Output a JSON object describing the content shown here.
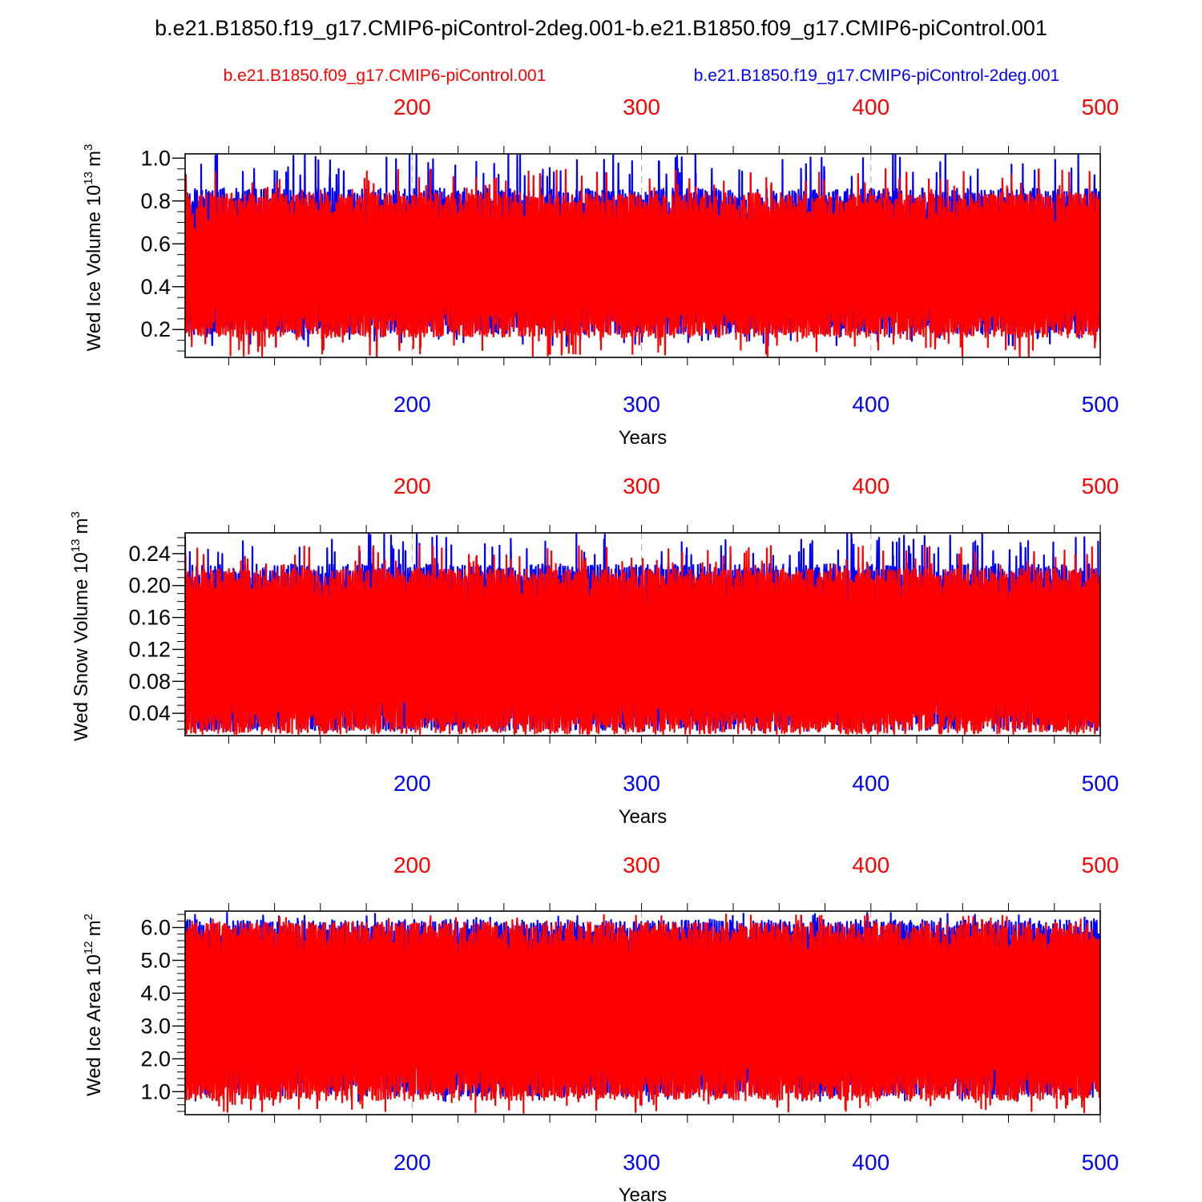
{
  "title": "b.e21.B1850.f19_g17.CMIP6-piControl-2deg.001-b.e21.B1850.f09_g17.CMIP6-piControl.001",
  "legend": {
    "red_label": "b.e21.B1850.f09_g17.CMIP6-piControl.001",
    "blue_label": "b.e21.B1850.f19_g17.CMIP6-piControl-2deg.001"
  },
  "colors": {
    "red": "#ff0000",
    "blue": "#0000ff",
    "axis": "#000000",
    "grid": "#aaaaaa"
  },
  "chart_data": [
    {
      "type": "line",
      "ylabel": "Wed Ice Volume",
      "ylabel_unit_base": "10",
      "ylabel_unit_exp": "13",
      "ylabel_unit_sym": "m",
      "ylabel_unit_sym_exp": "3",
      "xlabel": "Years",
      "xlim": [
        101,
        500
      ],
      "ylim": [
        0.07,
        1.02
      ],
      "x_ticks": [
        "200",
        "300",
        "400",
        "500"
      ],
      "y_ticks": [
        "0.2",
        "0.4",
        "0.6",
        "0.8",
        "1.0"
      ],
      "series": [
        {
          "name": "b.e21.B1850.f19_g17.CMIP6-piControl-2deg.001",
          "color": "blue",
          "low": 0.28,
          "high": 0.76,
          "range": [
            0.12,
            1.02
          ]
        },
        {
          "name": "b.e21.B1850.f09_g17.CMIP6-piControl.001",
          "color": "red",
          "low": 0.26,
          "high": 0.74,
          "range": [
            0.07,
            0.95
          ]
        }
      ]
    },
    {
      "type": "line",
      "ylabel": "Wed Snow Volume",
      "ylabel_unit_base": "10",
      "ylabel_unit_exp": "13",
      "ylabel_unit_sym": "m",
      "ylabel_unit_sym_exp": "3",
      "xlabel": "Years",
      "xlim": [
        101,
        500
      ],
      "ylim": [
        0.012,
        0.266
      ],
      "x_ticks": [
        "200",
        "300",
        "400",
        "500"
      ],
      "y_ticks": [
        "0.04",
        "0.08",
        "0.12",
        "0.16",
        "0.20",
        "0.24"
      ],
      "series": [
        {
          "name": "b.e21.B1850.f19_g17.CMIP6-piControl-2deg.001",
          "color": "blue",
          "low": 0.045,
          "high": 0.2,
          "range": [
            0.02,
            0.266
          ]
        },
        {
          "name": "b.e21.B1850.f09_g17.CMIP6-piControl.001",
          "color": "red",
          "low": 0.04,
          "high": 0.195,
          "range": [
            0.014,
            0.25
          ]
        }
      ]
    },
    {
      "type": "line",
      "ylabel": "Wed Ice Area",
      "ylabel_unit_base": "10",
      "ylabel_unit_exp": "12",
      "ylabel_unit_sym": "m",
      "ylabel_unit_sym_exp": "2",
      "xlabel": "Years",
      "xlim": [
        101,
        500
      ],
      "ylim": [
        0.3,
        6.5
      ],
      "x_ticks": [
        "200",
        "300",
        "400",
        "500"
      ],
      "y_ticks": [
        "1.0",
        "2.0",
        "3.0",
        "4.0",
        "5.0",
        "6.0"
      ],
      "series": [
        {
          "name": "b.e21.B1850.f19_g17.CMIP6-piControl-2deg.001",
          "color": "blue",
          "low": 1.5,
          "high": 5.6,
          "range": [
            0.7,
            6.45
          ]
        },
        {
          "name": "b.e21.B1850.f09_g17.CMIP6-piControl.001",
          "color": "red",
          "low": 1.4,
          "high": 5.5,
          "range": [
            0.35,
            6.4
          ]
        }
      ]
    }
  ]
}
